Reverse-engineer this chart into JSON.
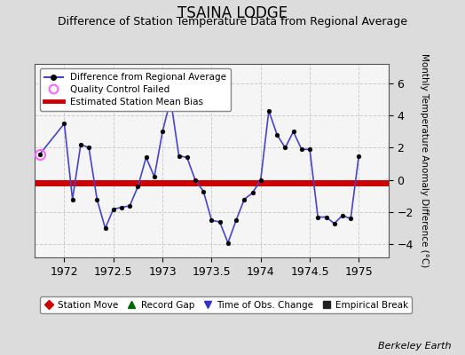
{
  "title": "TSAINA LODGE",
  "subtitle": "Difference of Station Temperature Data from Regional Average",
  "ylabel": "Monthly Temperature Anomaly Difference (°C)",
  "xlabel_bottom": "Berkeley Earth",
  "xlim": [
    1971.7,
    1975.3
  ],
  "ylim": [
    -4.8,
    7.2
  ],
  "yticks": [
    -4,
    -2,
    0,
    2,
    4,
    6
  ],
  "xticks": [
    1972,
    1972.5,
    1973,
    1973.5,
    1974,
    1974.5,
    1975
  ],
  "bias_y": -0.15,
  "background_color": "#dcdcdc",
  "plot_background": "#f5f5f5",
  "line_color": "#4444cc",
  "bias_color": "#cc0000",
  "x_data": [
    1971.75,
    1972.0,
    1972.083,
    1972.167,
    1972.25,
    1972.333,
    1972.417,
    1972.5,
    1972.583,
    1972.667,
    1972.75,
    1972.833,
    1972.917,
    1973.0,
    1973.083,
    1973.167,
    1973.25,
    1973.333,
    1973.417,
    1973.5,
    1973.583,
    1973.667,
    1973.75,
    1973.833,
    1973.917,
    1974.0,
    1974.083,
    1974.167,
    1974.25,
    1974.333,
    1974.417,
    1974.5,
    1974.583,
    1974.667,
    1974.75,
    1974.833,
    1974.917,
    1975.0
  ],
  "y_data": [
    1.6,
    3.5,
    -1.2,
    2.2,
    2.0,
    -1.2,
    -3.0,
    -1.8,
    -1.7,
    -1.6,
    -0.4,
    1.4,
    0.2,
    3.0,
    5.0,
    1.5,
    1.4,
    0.0,
    -0.7,
    -2.5,
    -2.6,
    -3.9,
    -2.5,
    -1.2,
    -0.8,
    0.0,
    4.3,
    2.8,
    2.0,
    3.0,
    1.9,
    1.9,
    -2.3,
    -2.3,
    -2.7,
    -2.2,
    -2.4,
    1.5
  ],
  "qc_fail_x": [
    1971.75
  ],
  "qc_fail_y": [
    1.6
  ],
  "legend1_labels": [
    "Difference from Regional Average",
    "Quality Control Failed",
    "Estimated Station Mean Bias"
  ],
  "legend2_labels": [
    "Station Move",
    "Record Gap",
    "Time of Obs. Change",
    "Empirical Break"
  ],
  "legend2_colors": [
    "#cc0000",
    "#006600",
    "#3333cc",
    "#222222"
  ],
  "legend2_markers": [
    "D",
    "^",
    "v",
    "s"
  ],
  "grid_color": "#cccccc",
  "title_fontsize": 12,
  "subtitle_fontsize": 9,
  "marker_size": 3.5
}
